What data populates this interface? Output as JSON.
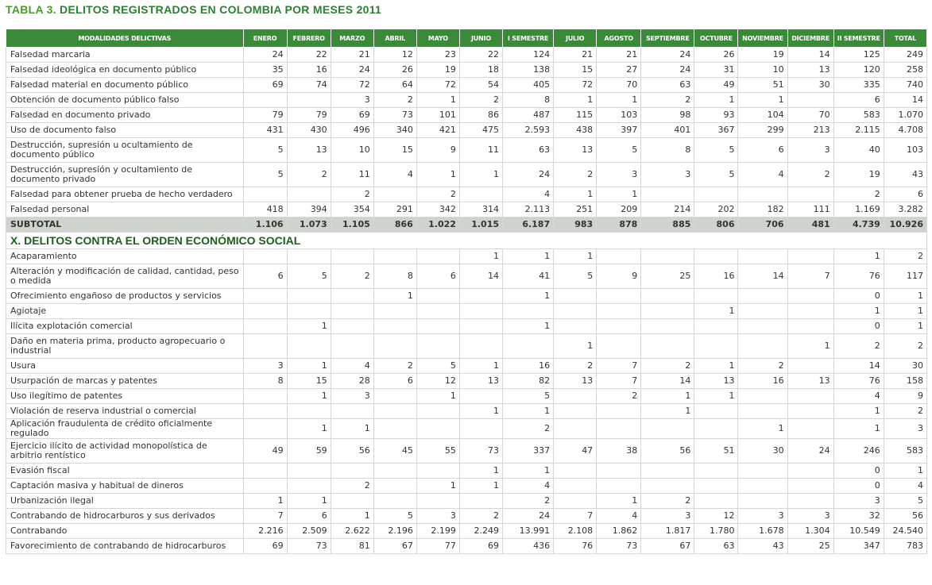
{
  "title": {
    "prefix": "TABLA 3.",
    "text": "DELITOS REGISTRADOS EN COLOMBIA POR MESES 2011"
  },
  "headers": [
    "MODALIDADES DELICTIVAS",
    "ENERO",
    "FEBRERO",
    "MARZO",
    "ABRIL",
    "MAYO",
    "JUNIO",
    "I SEMESTRE",
    "JULIO",
    "AGOSTO",
    "SEPTIEMBRE",
    "OCTUBRE",
    "NOVIEMBRE",
    "DICIEMBRE",
    "II SEMESTRE",
    "TOTAL"
  ],
  "rows": [
    {
      "label": "Falsedad marcaria",
      "values": [
        "24",
        "22",
        "21",
        "12",
        "23",
        "22",
        "124",
        "21",
        "21",
        "24",
        "26",
        "19",
        "14",
        "125",
        "249"
      ]
    },
    {
      "label": "Falsedad ideológica en documento público",
      "values": [
        "35",
        "16",
        "24",
        "26",
        "19",
        "18",
        "138",
        "15",
        "27",
        "24",
        "31",
        "10",
        "13",
        "120",
        "258"
      ]
    },
    {
      "label": "Falsedad material en documento público",
      "values": [
        "69",
        "74",
        "72",
        "64",
        "72",
        "54",
        "405",
        "72",
        "70",
        "63",
        "49",
        "51",
        "30",
        "335",
        "740"
      ]
    },
    {
      "label": "Obtención de documento público falso",
      "values": [
        "",
        "",
        "3",
        "2",
        "1",
        "2",
        "8",
        "1",
        "1",
        "2",
        "1",
        "1",
        "",
        "6",
        "14"
      ]
    },
    {
      "label": "Falsedad en documento privado",
      "values": [
        "79",
        "79",
        "69",
        "73",
        "101",
        "86",
        "487",
        "115",
        "103",
        "98",
        "93",
        "104",
        "70",
        "583",
        "1.070"
      ]
    },
    {
      "label": "Uso de documento falso",
      "values": [
        "431",
        "430",
        "496",
        "340",
        "421",
        "475",
        "2.593",
        "438",
        "397",
        "401",
        "367",
        "299",
        "213",
        "2.115",
        "4.708"
      ]
    },
    {
      "label": "Destrucción, supresión u ocultamiento de documento público",
      "tall": true,
      "values": [
        "5",
        "13",
        "10",
        "15",
        "9",
        "11",
        "63",
        "13",
        "5",
        "8",
        "5",
        "6",
        "3",
        "40",
        "103"
      ]
    },
    {
      "label": "Destrucción, supresión y ocultamiento de documento privado",
      "tall": true,
      "values": [
        "5",
        "2",
        "11",
        "4",
        "1",
        "1",
        "24",
        "2",
        "3",
        "3",
        "5",
        "4",
        "2",
        "19",
        "43"
      ]
    },
    {
      "label": "Falsedad para obtener prueba de hecho verdadero",
      "values": [
        "",
        "",
        "2",
        "",
        "2",
        "",
        "4",
        "1",
        "1",
        "",
        "",
        "",
        "",
        "2",
        "6"
      ]
    },
    {
      "label": "Falsedad personal",
      "values": [
        "418",
        "394",
        "354",
        "291",
        "342",
        "314",
        "2.113",
        "251",
        "209",
        "214",
        "202",
        "182",
        "111",
        "1.169",
        "3.282"
      ]
    },
    {
      "label": "SUBTOTAL",
      "kind": "subtotal",
      "values": [
        "1.106",
        "1.073",
        "1.105",
        "866",
        "1.022",
        "1.015",
        "6.187",
        "983",
        "878",
        "885",
        "806",
        "706",
        "481",
        "4.739",
        "10.926"
      ]
    },
    {
      "label": "X. DELITOS CONTRA EL ORDEN ECONÓMICO SOCIAL",
      "kind": "section"
    },
    {
      "label": "Acaparamiento",
      "values": [
        "",
        "",
        "",
        "",
        "",
        "1",
        "1",
        "1",
        "",
        "",
        "",
        "",
        "",
        "1",
        "2"
      ]
    },
    {
      "label": "Alteración y modificación de calidad, cantidad, peso o medida",
      "tall": true,
      "values": [
        "6",
        "5",
        "2",
        "8",
        "6",
        "14",
        "41",
        "5",
        "9",
        "25",
        "16",
        "14",
        "7",
        "76",
        "117"
      ]
    },
    {
      "label": "Ofrecimiento engañoso de productos y servicios",
      "values": [
        "",
        "",
        "",
        "1",
        "",
        "",
        "1",
        "",
        "",
        "",
        "",
        "",
        "",
        "0",
        "1"
      ]
    },
    {
      "label": "Agiotaje",
      "values": [
        "",
        "",
        "",
        "",
        "",
        "",
        "",
        "",
        "",
        "",
        "1",
        "",
        "",
        "1",
        "1"
      ]
    },
    {
      "label": "Ilícita explotación comercial",
      "values": [
        "",
        "1",
        "",
        "",
        "",
        "",
        "1",
        "",
        "",
        "",
        "",
        "",
        "",
        "0",
        "1"
      ]
    },
    {
      "label": "Daño en materia prima, producto agropecuario o industrial",
      "tall": true,
      "values": [
        "",
        "",
        "",
        "",
        "",
        "",
        "",
        "1",
        "",
        "",
        "",
        "",
        "1",
        "2",
        "2"
      ]
    },
    {
      "label": "Usura",
      "values": [
        "3",
        "1",
        "4",
        "2",
        "5",
        "1",
        "16",
        "2",
        "7",
        "2",
        "1",
        "2",
        "",
        "14",
        "30"
      ]
    },
    {
      "label": "Usurpación de marcas y patentes",
      "values": [
        "8",
        "15",
        "28",
        "6",
        "12",
        "13",
        "82",
        "13",
        "7",
        "14",
        "13",
        "16",
        "13",
        "76",
        "158"
      ]
    },
    {
      "label": "Uso ilegítimo de patentes",
      "values": [
        "",
        "1",
        "3",
        "",
        "1",
        "",
        "5",
        "",
        "2",
        "1",
        "1",
        "",
        "",
        "4",
        "9"
      ]
    },
    {
      "label": "Violación de reserva industrial o comercial",
      "values": [
        "",
        "",
        "",
        "",
        "",
        "1",
        "1",
        "",
        "",
        "1",
        "",
        "",
        "",
        "1",
        "2"
      ]
    },
    {
      "label": "Aplicación fraudulenta de crédito oficialmente regulado",
      "values": [
        "",
        "1",
        "1",
        "",
        "",
        "",
        "2",
        "",
        "",
        "",
        "",
        "1",
        "",
        "1",
        "3"
      ]
    },
    {
      "label": "Ejercicio ilícito de actividad monopolística de arbitrio rentístico",
      "tall": true,
      "values": [
        "49",
        "59",
        "56",
        "45",
        "55",
        "73",
        "337",
        "47",
        "38",
        "56",
        "51",
        "30",
        "24",
        "246",
        "583"
      ]
    },
    {
      "label": "Evasión fiscal",
      "values": [
        "",
        "",
        "",
        "",
        "",
        "1",
        "1",
        "",
        "",
        "",
        "",
        "",
        "",
        "0",
        "1"
      ]
    },
    {
      "label": "Captación masiva y habitual de dineros",
      "values": [
        "",
        "",
        "2",
        "",
        "1",
        "1",
        "4",
        "",
        "",
        "",
        "",
        "",
        "",
        "0",
        "4"
      ]
    },
    {
      "label": "Urbanización ilegal",
      "values": [
        "1",
        "1",
        "",
        "",
        "",
        "",
        "2",
        "",
        "1",
        "2",
        "",
        "",
        "",
        "3",
        "5"
      ]
    },
    {
      "label": "Contrabando de hidrocarburos y sus derivados",
      "values": [
        "7",
        "6",
        "1",
        "5",
        "3",
        "2",
        "24",
        "7",
        "4",
        "3",
        "12",
        "3",
        "3",
        "32",
        "56"
      ]
    },
    {
      "label": "Contrabando",
      "values": [
        "2.216",
        "2.509",
        "2.622",
        "2.196",
        "2.199",
        "2.249",
        "13.991",
        "2.108",
        "1.862",
        "1.817",
        "1.780",
        "1.678",
        "1.304",
        "10.549",
        "24.540"
      ]
    },
    {
      "label": "Favorecimiento de contrabando de hidrocarburos",
      "values": [
        "69",
        "73",
        "81",
        "67",
        "77",
        "69",
        "436",
        "76",
        "73",
        "67",
        "63",
        "43",
        "25",
        "347",
        "783"
      ]
    }
  ]
}
